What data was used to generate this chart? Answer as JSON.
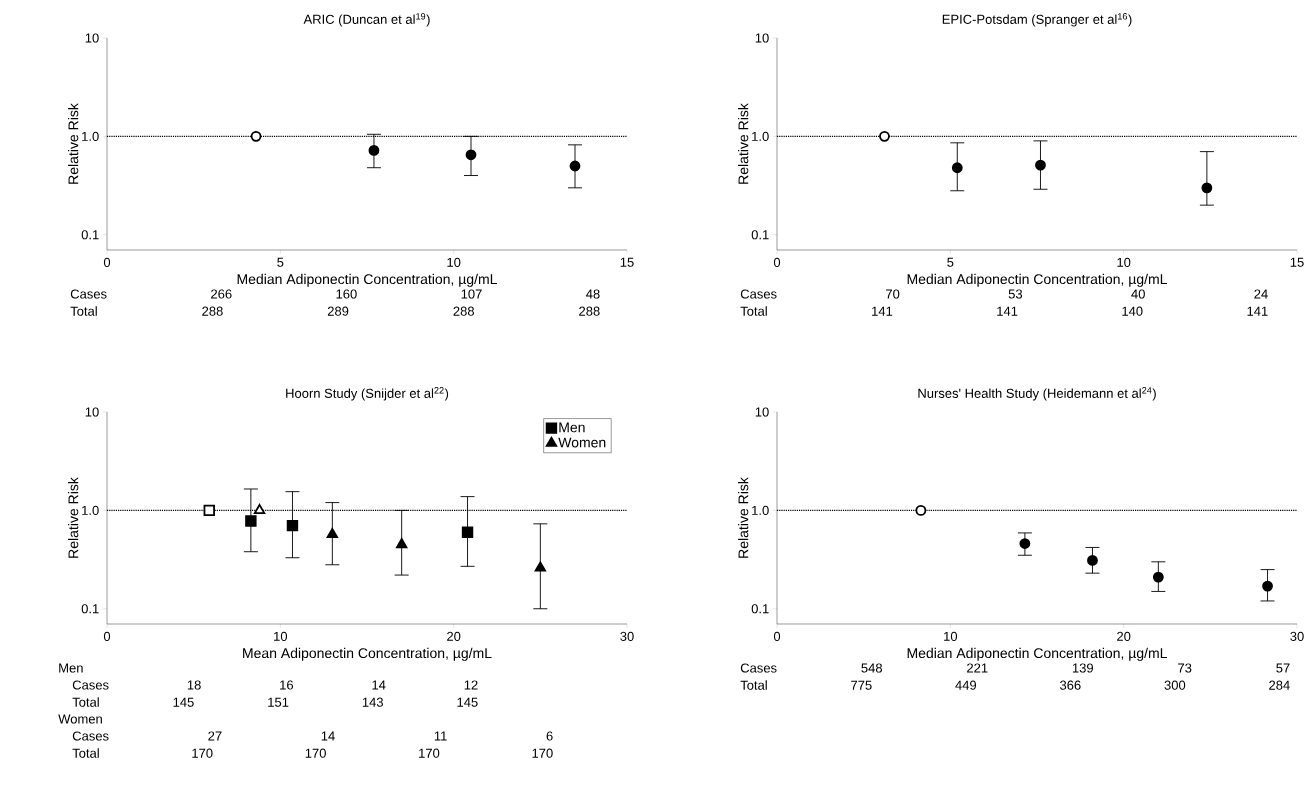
{
  "chart_data": [
    {
      "type": "scatter",
      "title": "ARIC (Duncan et al$^{19}$)",
      "xlabel": "Median Adiponectin Concentration, µg/mL",
      "ylabel": "Relative Risk",
      "xlim": [
        0,
        15
      ],
      "xticks": [
        0,
        5,
        10,
        15
      ],
      "ylim": [
        0.07,
        10
      ],
      "yticks": [
        {
          "value": 0.1,
          "label": "0.1"
        },
        {
          "value": 1,
          "label": "1.0"
        },
        {
          "value": 10,
          "label": "10"
        }
      ],
      "log": "y",
      "ref_lines": [
        {
          "axis": "y",
          "value": 1,
          "line_style": "dotted"
        }
      ],
      "series": [
        {
          "color": "#000000",
          "marker": "circle",
          "x": [
            4.3,
            7.7,
            10.5,
            13.5
          ],
          "values": [
            1.0,
            0.72,
            0.65,
            0.5
          ],
          "errors": [
            null,
            [
              0.48,
              1.05
            ],
            [
              0.4,
              1.0
            ],
            [
              0.3,
              0.82
            ]
          ],
          "colors": [
            "#ffffff",
            "#000000",
            "#000000",
            "#000000"
          ]
        }
      ],
      "annotations": [
        "Cases 266 160 107 48",
        "Total 288 289 288 288"
      ]
    },
    {
      "type": "scatter",
      "title": "EPIC-Potsdam (Spranger et al$^{16}$)",
      "xlabel": "Median Adiponectin Concentration, µg/mL",
      "ylabel": "Relative Risk",
      "xlim": [
        0,
        15
      ],
      "xticks": [
        0,
        5,
        10,
        15
      ],
      "ylim": [
        0.07,
        10
      ],
      "yticks": [
        {
          "value": 0.1,
          "label": "0.1"
        },
        {
          "value": 1,
          "label": "1.0"
        },
        {
          "value": 10,
          "label": "10"
        }
      ],
      "log": "y",
      "ref_lines": [
        {
          "axis": "y",
          "value": 1,
          "line_style": "dotted"
        }
      ],
      "series": [
        {
          "color": "#000000",
          "marker": "circle",
          "x": [
            3.1,
            5.2,
            7.6,
            12.4
          ],
          "values": [
            1.0,
            0.48,
            0.51,
            0.3
          ],
          "errors": [
            null,
            [
              0.28,
              0.86
            ],
            [
              0.29,
              0.9
            ],
            [
              0.2,
              0.7
            ]
          ],
          "colors": [
            "#ffffff",
            "#000000",
            "#000000",
            "#000000"
          ]
        }
      ],
      "annotations": [
        "Cases 70 53 40 24",
        "Total 141 141 140 141"
      ]
    },
    {
      "type": "scatter",
      "title": "Hoorn Study (Snijder et al$^{22}$)",
      "xlabel": "Mean Adiponectin Concentration, µg/mL",
      "ylabel": "Relative Risk",
      "xlim": [
        0,
        30
      ],
      "xticks": [
        0,
        10,
        20,
        30
      ],
      "ylim": [
        0.07,
        10
      ],
      "yticks": [
        {
          "value": 0.1,
          "label": "0.1"
        },
        {
          "value": 1,
          "label": "1.0"
        },
        {
          "value": 10,
          "label": "10"
        }
      ],
      "log": "y",
      "legend": "top right",
      "ref_lines": [
        {
          "axis": "y",
          "value": 1,
          "line_style": "dotted"
        }
      ],
      "series": [
        {
          "color": "#000000",
          "marker": "square",
          "x": [
            5.9
          ],
          "values": [
            1.0
          ],
          "colors": [
            "#ffffff"
          ]
        },
        {
          "color": "#000000",
          "marker": "triangle",
          "x": [
            8.8
          ],
          "values": [
            1.0
          ],
          "colors": [
            "#ffffff"
          ]
        },
        {
          "name": "Men",
          "color": "#000000",
          "marker": "square",
          "x": [
            8.3,
            10.7,
            20.8
          ],
          "values": [
            0.78,
            0.7,
            0.6
          ],
          "errors": [
            [
              0.38,
              1.65
            ],
            [
              0.33,
              1.55
            ],
            [
              0.27,
              1.38
            ]
          ]
        },
        {
          "name": "Women",
          "color": "#000000",
          "marker": "triangle",
          "x": [
            13.0,
            17.0,
            25.0
          ],
          "values": [
            0.57,
            0.45,
            0.26
          ],
          "errors": [
            [
              0.28,
              1.2
            ],
            [
              0.22,
              1.0
            ],
            [
              0.1,
              0.73
            ]
          ]
        }
      ],
      "annotations": [
        "Men",
        "Cases 18 16 14 12",
        "Total 145 151 143 145",
        "Women",
        "Cases 27 14 11 6",
        "Total 170 170 170 170"
      ]
    },
    {
      "type": "scatter",
      "title": "Nurses' Health Study (Heidemann et al$^{24}$)",
      "xlabel": "Median Adiponectin Concentration, µg/mL",
      "ylabel": "Relative Risk",
      "xlim": [
        0,
        30
      ],
      "xticks": [
        0,
        10,
        20,
        30
      ],
      "ylim": [
        0.07,
        10
      ],
      "yticks": [
        {
          "value": 0.1,
          "label": "0.1"
        },
        {
          "value": 1,
          "label": "1.0"
        },
        {
          "value": 10,
          "label": "10"
        }
      ],
      "log": "y",
      "ref_lines": [
        {
          "axis": "y",
          "value": 1,
          "line_style": "dotted"
        }
      ],
      "series": [
        {
          "color": "#000000",
          "marker": "circle",
          "x": [
            8.3,
            14.3,
            18.2,
            22.0,
            28.3
          ],
          "values": [
            1.0,
            0.46,
            0.31,
            0.21,
            0.17
          ],
          "errors": [
            null,
            [
              0.35,
              0.59
            ],
            [
              0.23,
              0.42
            ],
            [
              0.15,
              0.3
            ],
            [
              0.12,
              0.25
            ]
          ],
          "colors": [
            "#ffffff",
            "#000000",
            "#000000",
            "#000000",
            "#000000"
          ]
        }
      ],
      "annotations": [
        "Cases 548 221 139 73 57",
        "Total 775 449 366 300 284"
      ]
    }
  ]
}
